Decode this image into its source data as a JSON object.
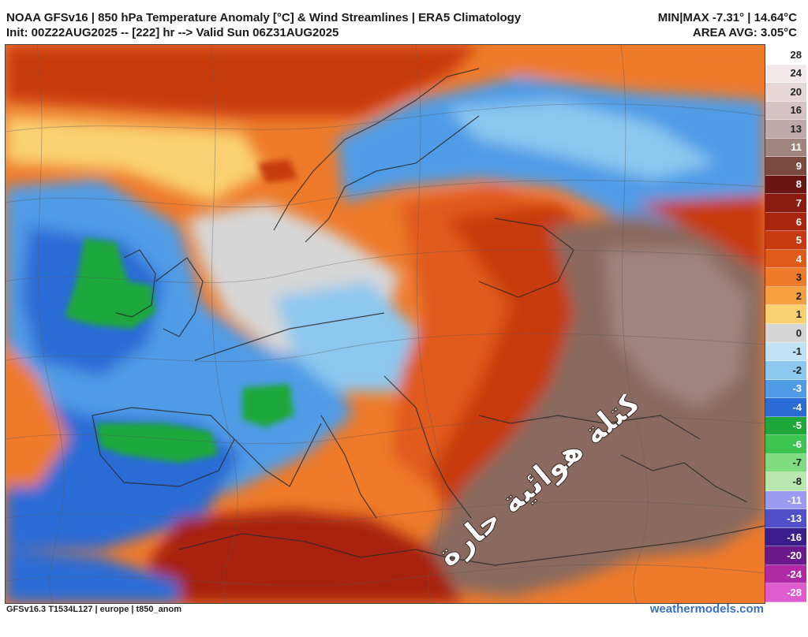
{
  "header": {
    "title": "NOAA GFSv16 | 850 hPa Temperature Anomaly [°C] & Wind Streamlines | ERA5 Climatology",
    "init": "Init: 00Z22AUG2025 -- [222] hr --> Valid Sun 06Z31AUG2025",
    "minmax": "MIN|MAX -7.31° | 14.64°C",
    "area_avg": "AREA AVG: 3.05°C"
  },
  "colorbar": {
    "labels": [
      "28",
      "24",
      "20",
      "16",
      "13",
      "11",
      "9",
      "8",
      "7",
      "6",
      "5",
      "4",
      "3",
      "2",
      "1",
      "0",
      "-1",
      "-2",
      "-3",
      "-4",
      "-5",
      "-6",
      "-7",
      "-8",
      "-11",
      "-13",
      "-16",
      "-20",
      "-24",
      "-28"
    ],
    "colors": [
      "#ffffff",
      "#f2eaea",
      "#e6d6d6",
      "#d6c2c2",
      "#bfa8a8",
      "#a0857f",
      "#7a4a40",
      "#6b1414",
      "#8b1a10",
      "#a8240c",
      "#c83a10",
      "#e05a1a",
      "#ee7a2a",
      "#f5a040",
      "#fad070",
      "#d6d6d6",
      "#bfe3f5",
      "#8cc8f0",
      "#4f9be6",
      "#2a6cd6",
      "#1fa83a",
      "#3cc450",
      "#7fdc7f",
      "#b8e8b0",
      "#9a9af0",
      "#5050c8",
      "#3a1f8c",
      "#6a1a8c",
      "#b02aa8",
      "#e05ad0"
    ]
  },
  "map": {
    "annotation": "كتلة هوائية حارة",
    "annotation_color": "#ffffff",
    "hot_mass_color": "#8a6a5e"
  },
  "footer": {
    "model_info": "GFSv16.3 T1534L127 | europe | t850_anom",
    "site": "weathermodels.com"
  }
}
